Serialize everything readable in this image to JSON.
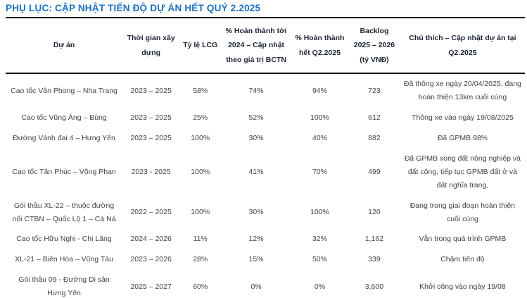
{
  "title": "PHỤ LỤC: CẬP NHẬT TIẾN ĐỘ DỰ ÁN HẾT QUÝ 2.2025",
  "colors": {
    "title": "#1b70c0",
    "header_text": "#1c2431",
    "body_text": "#3f454d",
    "rule": "#141414"
  },
  "table": {
    "columns": [
      "Dự án",
      "Thời gian xây dựng",
      "Tỷ lệ LCG",
      "% Hoàn thành tới 2024 – Cập nhật theo giá trị BCTN",
      "% Hoàn thành hết Q2.2025",
      "Backlog 2025 – 2026 (tỷ VNĐ)",
      "Chú thích – Cập nhật dự án tại Q2.2025"
    ],
    "rows": [
      [
        "Cao tốc Vân Phong – Nha Trang",
        "2023 – 2025",
        "58%",
        "74%",
        "94%",
        "723",
        "Đã thông xe ngày 20/04/2025, đang hoàn thiện 13km cuối cùng"
      ],
      [
        "Cao tốc Vũng Áng – Bùng",
        "2023 – 2025",
        "25%",
        "52%",
        "100%",
        "612",
        "Thông xe vào ngày 19/08/2025"
      ],
      [
        "Đường Vành đai 4 – Hưng Yên",
        "2023 – 2025",
        "100%",
        "30%",
        "40%",
        "882",
        "Đã GPMB 98%"
      ],
      [
        "Cao tốc Tân Phúc – Võng Phan",
        "2023 - 2025",
        "100%",
        "41%",
        "70%",
        "499",
        "Đã GPMB xong đất nông nghiệp và đất công, tiếp tục GPMB đất ở và đất nghĩa trang,"
      ],
      [
        "Gói thầu XL-22 – thuộc đường nối CTBN – Quốc Lộ 1 – Cà Ná",
        "2022 – 2025",
        "100%",
        "30%",
        "100%",
        "120",
        "Đang trong giai đoạn hoàn thiện cuối cùng"
      ],
      [
        "Cao tốc Hữu Nghị - Chi Lăng",
        "2024 – 2026",
        "11%",
        "12%",
        "32%",
        "1,162",
        "Vẫn trong quá trình GPMB"
      ],
      [
        "XL-21 – Biên Hòa – Vũng Tàu",
        "2023 – 2026",
        "28%",
        "15%",
        "50%",
        "339",
        "Chậm tiến độ"
      ],
      [
        "Gói thầu 09 - Đường Di sản Hưng Yên",
        "2025 – 2027",
        "60%",
        "0%",
        "0%",
        "3,600",
        "Khởi công vào ngày 19/08"
      ]
    ]
  }
}
